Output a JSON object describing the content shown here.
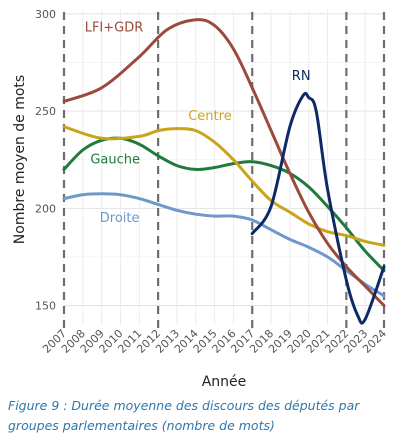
{
  "chart_data": {
    "type": "line",
    "xlabel": "Année",
    "ylabel": "Nombre moyen de mots",
    "xlim": [
      2007,
      2024
    ],
    "ylim": [
      140,
      302
    ],
    "yticks": [
      150,
      200,
      250,
      300
    ],
    "xticks": [
      "2007",
      "2008",
      "2009",
      "2010",
      "2011",
      "2012",
      "2013",
      "2014",
      "2015",
      "2016",
      "2017",
      "2018",
      "2019",
      "2020",
      "2021",
      "2022",
      "2023",
      "2024"
    ],
    "vlines": [
      2007,
      2012,
      2017,
      2022,
      2024
    ],
    "grid": true,
    "series": [
      {
        "name": "LFI+GDR",
        "color": "#9b4a3c",
        "x": [
          2007,
          2009,
          2011,
          2012.5,
          2014,
          2015,
          2016,
          2017,
          2018,
          2019,
          2020,
          2021,
          2022,
          2023,
          2024
        ],
        "y": [
          255,
          262,
          278,
          292,
          297,
          294,
          282,
          262,
          240,
          218,
          198,
          182,
          170,
          160,
          150
        ]
      },
      {
        "name": "Centre",
        "color": "#c9a41a",
        "x": [
          2007,
          2009,
          2011,
          2012,
          2013,
          2014,
          2015,
          2016,
          2017,
          2018,
          2019,
          2020,
          2021,
          2022,
          2023,
          2024
        ],
        "y": [
          242,
          236,
          237,
          240,
          241,
          240,
          234,
          225,
          214,
          204,
          198,
          192,
          188,
          186,
          183,
          181
        ]
      },
      {
        "name": "Gauche",
        "color": "#1f7a3c",
        "x": [
          2007,
          2008,
          2009,
          2010,
          2011,
          2012,
          2013,
          2014,
          2015,
          2016,
          2017,
          2018,
          2019,
          2020,
          2021,
          2022,
          2023,
          2024
        ],
        "y": [
          220,
          230,
          235,
          236,
          233,
          227,
          222,
          220,
          221,
          223,
          224,
          222,
          218,
          211,
          201,
          190,
          178,
          168
        ]
      },
      {
        "name": "Droite",
        "color": "#6e97cc",
        "x": [
          2007,
          2008,
          2009,
          2010,
          2011,
          2012,
          2013,
          2014,
          2015,
          2016,
          2017,
          2018,
          2019,
          2020,
          2021,
          2022,
          2023,
          2024
        ],
        "y": [
          205,
          207,
          207.5,
          207,
          205,
          202,
          199,
          197,
          196,
          196,
          194,
          189,
          184,
          180,
          175,
          168,
          161,
          155
        ]
      },
      {
        "name": "RN",
        "color": "#0d2a66",
        "x": [
          2017,
          2018,
          2019,
          2019.7,
          2020,
          2020.4,
          2021,
          2022,
          2022.6,
          2023,
          2024
        ],
        "y": [
          187,
          201,
          242,
          258,
          257,
          250,
          210,
          163,
          145,
          143,
          170
        ]
      }
    ]
  },
  "caption": "Figure 9 : Durée moyenne des discours des députés par groupes parlementaires (nombre de mots)"
}
